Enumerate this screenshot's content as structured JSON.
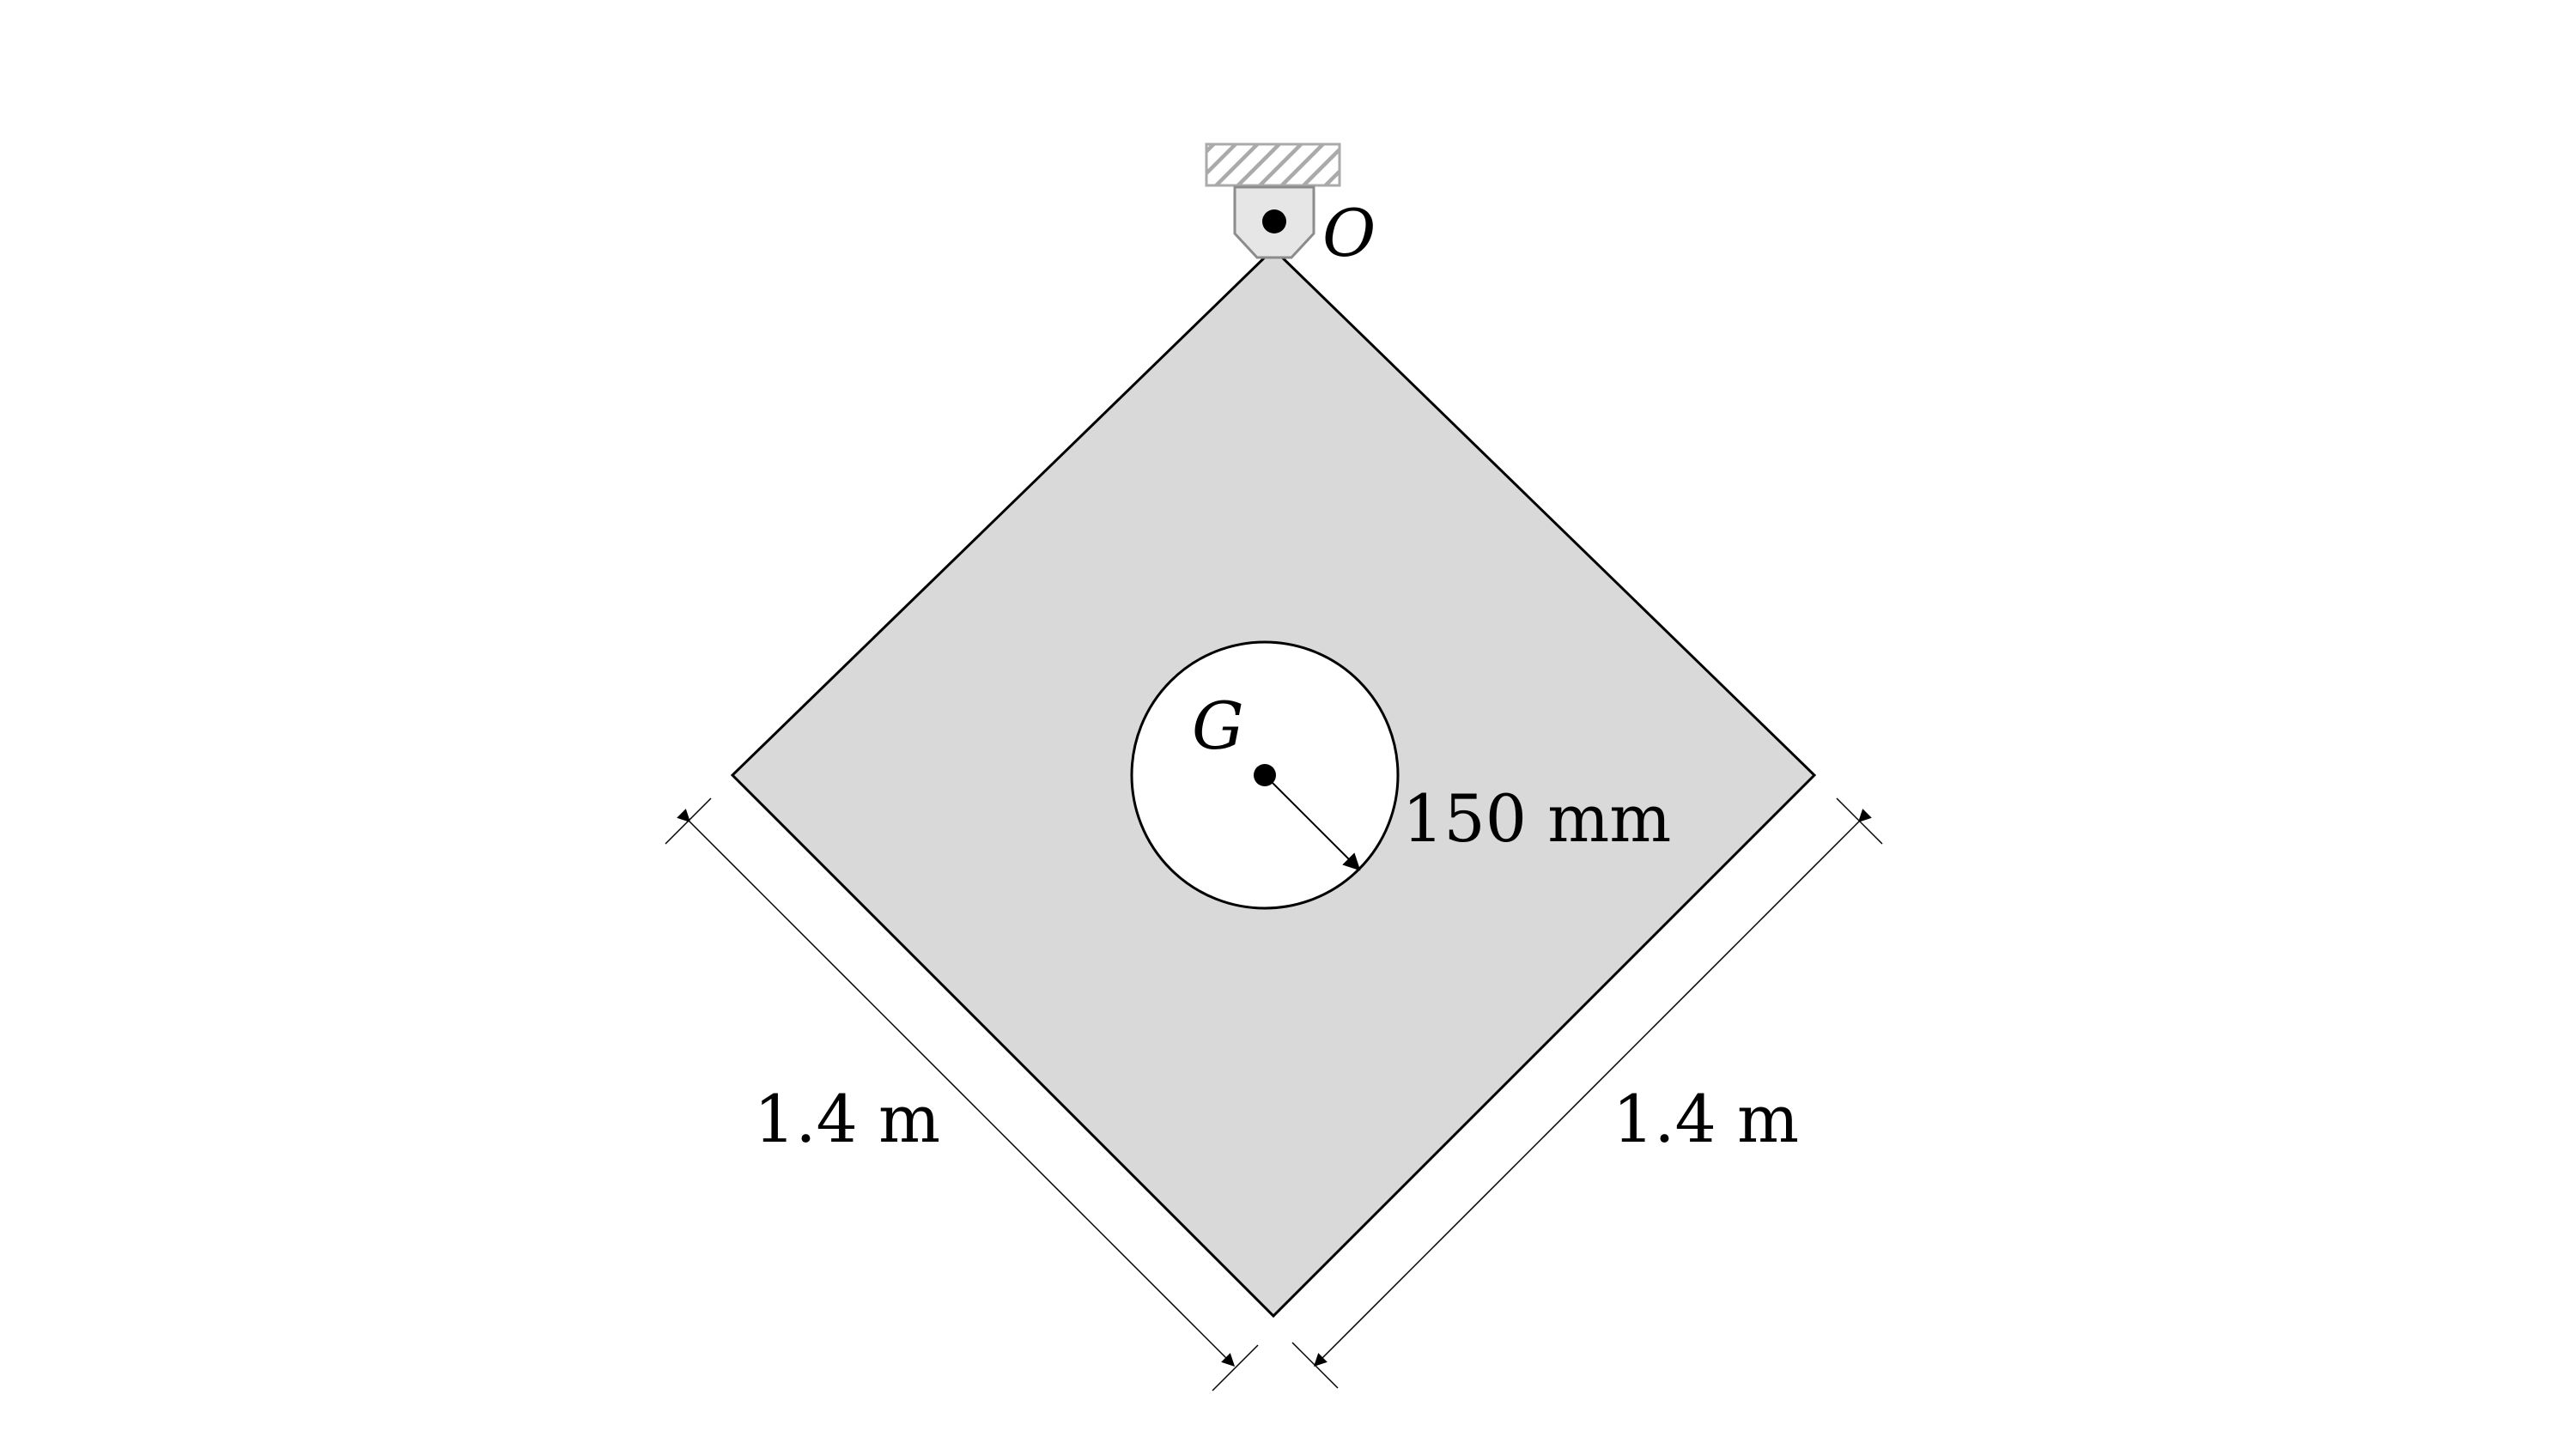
{
  "diagram": {
    "pivot_label": "O",
    "center_label": "G",
    "hole_radius_label": "150 mm",
    "left_side_label": "1.4 m",
    "right_side_label": "1.4 m"
  },
  "colors": {
    "plate_fill": "#d9d9d9",
    "outline": "#000000",
    "hole_fill": "#ffffff",
    "support_fill": "#e6e6e6",
    "support_stroke": "#8c8c8c",
    "hatch": "#aaaaaa"
  }
}
